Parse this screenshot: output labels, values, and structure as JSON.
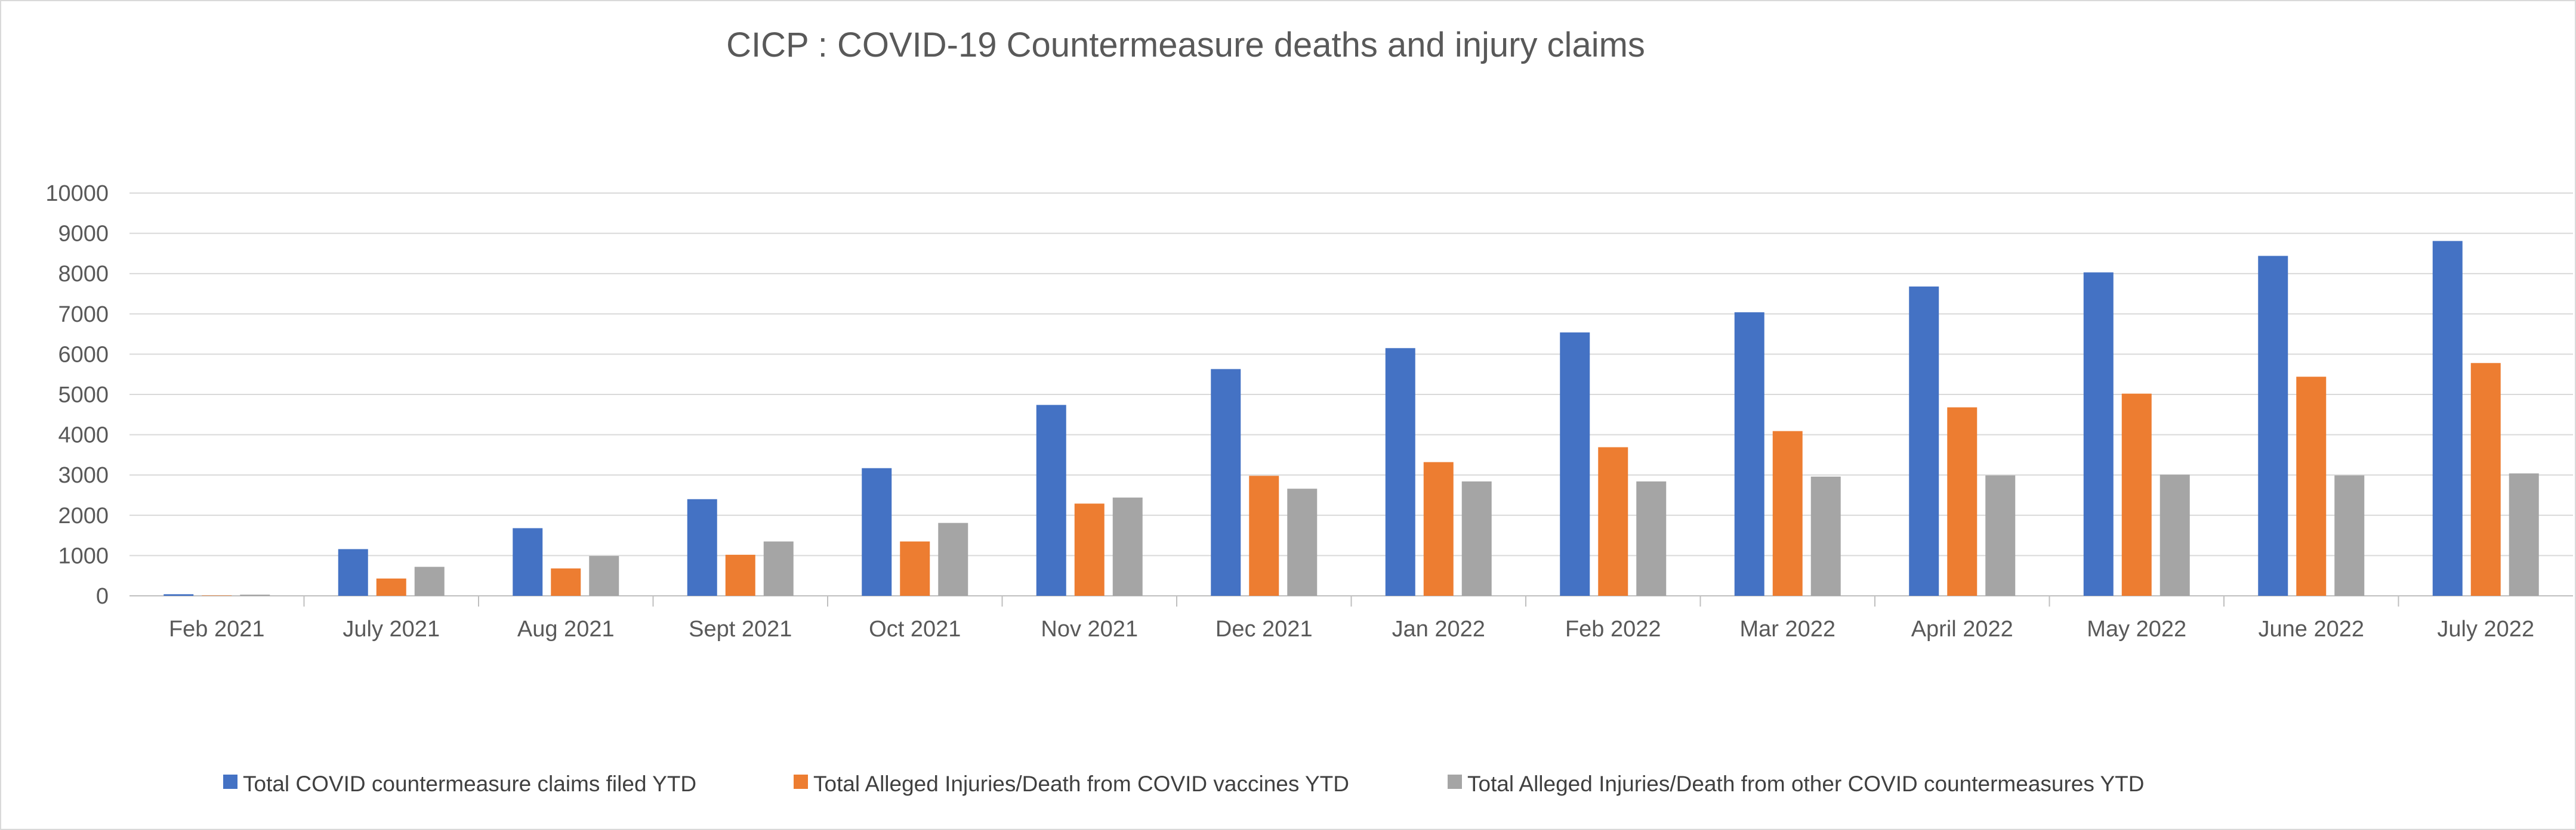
{
  "chart_data": {
    "type": "bar",
    "title": "CICP : COVID-19 Countermeasure deaths and injury claims",
    "xlabel": "",
    "ylabel": "",
    "ylim": [
      0,
      10000
    ],
    "y_ticks": [
      0,
      1000,
      2000,
      3000,
      4000,
      5000,
      6000,
      7000,
      8000,
      9000,
      10000
    ],
    "grid": true,
    "legend_position": "bottom",
    "categories": [
      "Feb 2021",
      "July 2021",
      "Aug 2021",
      "Sept 2021",
      "Oct 2021",
      "Nov 2021",
      "Dec 2021",
      "Jan 2022",
      "Feb 2022",
      "Mar 2022",
      "April 2022",
      "May 2022",
      "June 2022",
      "July 2022"
    ],
    "series": [
      {
        "name": "Total COVID countermeasure claims filed YTD",
        "color": "#4472c4",
        "values": [
          40,
          1160,
          1680,
          2400,
          3170,
          4740,
          5630,
          6150,
          6540,
          7040,
          7680,
          8030,
          8440,
          8810
        ]
      },
      {
        "name": "Total Alleged Injuries/Death from COVID vaccines YTD",
        "color": "#ed7d31",
        "values": [
          10,
          430,
          680,
          1020,
          1350,
          2290,
          2980,
          3320,
          3690,
          4090,
          4680,
          5020,
          5440,
          5780
        ]
      },
      {
        "name": "Total Alleged Injuries/Death from other COVID countermeasures YTD",
        "color": "#a5a5a5",
        "values": [
          30,
          720,
          990,
          1350,
          1810,
          2440,
          2660,
          2840,
          2840,
          2960,
          2990,
          3010,
          2990,
          3040
        ]
      }
    ]
  }
}
